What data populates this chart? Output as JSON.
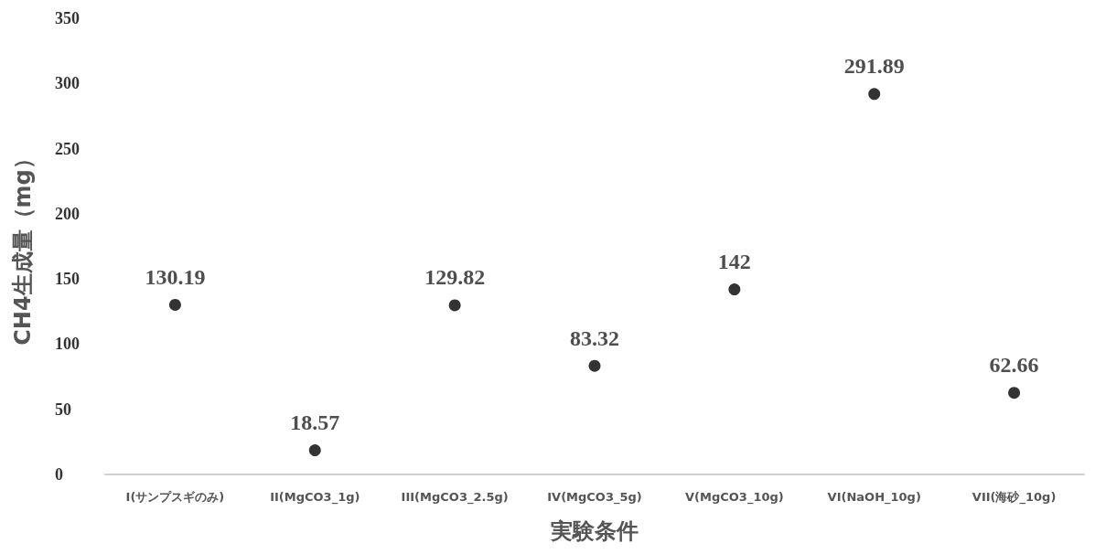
{
  "chart_data": {
    "type": "scatter",
    "xlabel": "実験条件",
    "ylabel": "CH4生成量（mg）",
    "categories": [
      "I(サンプスギのみ)",
      "II(MgCO3_1g)",
      "III(MgCO3_2.5g)",
      "IV(MgCO3_5g)",
      "V(MgCO3_10g)",
      "VI(NaOH_10g)",
      "VII(海砂_10g)"
    ],
    "values": [
      130.19,
      18.57,
      129.82,
      83.32,
      142,
      291.89,
      62.66
    ],
    "color": "#000000",
    "marker": "circle",
    "data_labels": true,
    "ylim": [
      0,
      350
    ],
    "yticks": [
      0,
      50,
      100,
      150,
      200,
      250,
      300,
      350
    ]
  }
}
